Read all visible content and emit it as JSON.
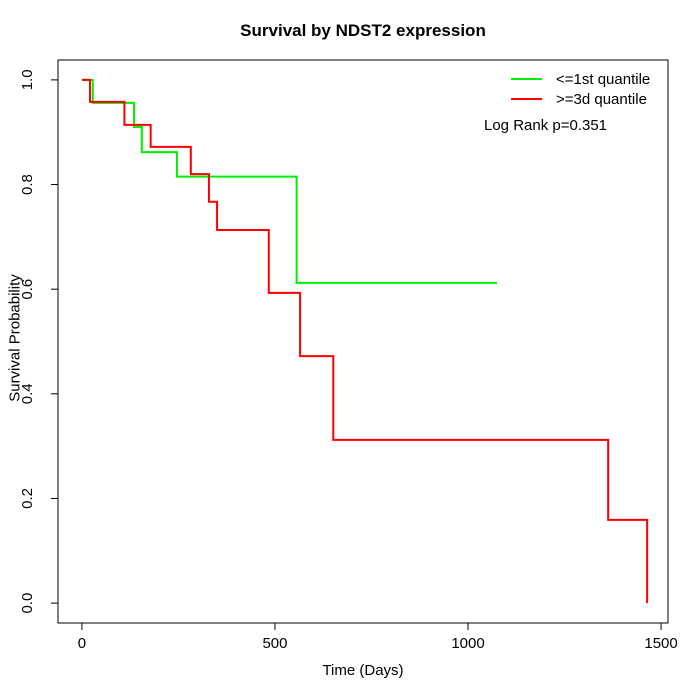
{
  "title": "Survival by NDST2 expression",
  "colors": {
    "background": "#ffffff",
    "axis": "#000000",
    "series_green": "#00ee00",
    "series_red": "#ff0000"
  },
  "annotation": "Log Rank p=0.351",
  "chart_data": {
    "type": "line",
    "subtype": "kaplan-meier-step",
    "title": "Survival by NDST2 expression",
    "xlabel": "Time (Days)",
    "ylabel": "Survival Probability",
    "x_ticks": [
      0,
      500,
      1000,
      1500
    ],
    "x_tick_labels": [
      "0",
      "500",
      "1000",
      "1500"
    ],
    "y_ticks": [
      0.0,
      0.2,
      0.4,
      0.6,
      0.8,
      1.0
    ],
    "y_tick_labels": [
      "0.0",
      "0.2",
      "0.4",
      "0.6",
      "0.8",
      "1.0"
    ],
    "xlim": [
      -62,
      1518
    ],
    "ylim": [
      -0.038,
      1.038
    ],
    "grid": false,
    "box": true,
    "legend_position": "top-right",
    "annotation": "Log Rank p=0.351",
    "series": [
      {
        "name": "<=1st quantile",
        "color": "#00ee00",
        "line_width": 2,
        "steps": [
          [
            0,
            1.0
          ],
          [
            28,
            0.956
          ],
          [
            135,
            0.91
          ],
          [
            155,
            0.862
          ],
          [
            246,
            0.815
          ],
          [
            556,
            0.612
          ],
          [
            1075,
            0.612
          ]
        ]
      },
      {
        "name": ">=3d quantile",
        "color": "#ff0000",
        "line_width": 2,
        "steps": [
          [
            0,
            1.0
          ],
          [
            21,
            0.958
          ],
          [
            110,
            0.914
          ],
          [
            178,
            0.872
          ],
          [
            282,
            0.82
          ],
          [
            329,
            0.767
          ],
          [
            350,
            0.713
          ],
          [
            484,
            0.593
          ],
          [
            565,
            0.472
          ],
          [
            651,
            0.312
          ],
          [
            1363,
            0.159
          ],
          [
            1464,
            0.0
          ]
        ]
      }
    ]
  }
}
